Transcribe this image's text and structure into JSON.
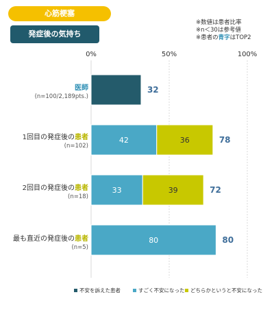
{
  "header": {
    "tag": "心筋梗塞",
    "subtitle": "発症後の気持ち"
  },
  "notes": {
    "line1": "※数値は患者比率",
    "line2": "※n＜30は参考値",
    "line3_pre": "※患者の",
    "line3_hl": "青字",
    "line3_post": "はTOP2"
  },
  "colors": {
    "series1": "#245b6b",
    "series2": "#4aa8c6",
    "series3": "#c8c800",
    "total_label": "#3f6e9a"
  },
  "chart_data": {
    "type": "bar",
    "orientation": "horizontal",
    "stacked": true,
    "xlim": [
      0,
      100
    ],
    "tick_labels": [
      "0%",
      "50%",
      "100%"
    ],
    "categories": [
      {
        "pre": "",
        "hl": "医師",
        "note": "(n=100/2,189pts.)",
        "style": "blue"
      },
      {
        "pre": "1回目の発症後の",
        "hl": "患者",
        "note": "(n=102)",
        "style": "yellow"
      },
      {
        "pre": "2回目の発症後の",
        "hl": "患者",
        "note": "(n=18)",
        "style": "yellow"
      },
      {
        "pre": "最も直近の発症後の",
        "hl": "患者",
        "note": "(n=5)",
        "style": "yellow"
      }
    ],
    "series": [
      {
        "name": "不安を訴えた患者",
        "values": [
          32,
          null,
          null,
          null
        ]
      },
      {
        "name": "すごく不安になった",
        "values": [
          null,
          42,
          33,
          80
        ]
      },
      {
        "name": "どちらかというと不安になった",
        "values": [
          null,
          36,
          39,
          null
        ]
      }
    ],
    "totals": [
      32,
      78,
      72,
      80
    ]
  }
}
